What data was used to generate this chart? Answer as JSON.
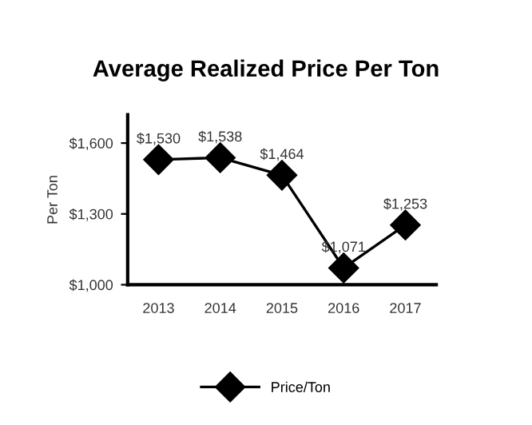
{
  "chart_data": {
    "type": "line",
    "title": "Average Realized Price Per Ton",
    "ylabel": "Per Ton",
    "categories": [
      "2013",
      "2014",
      "2015",
      "2016",
      "2017"
    ],
    "series": [
      {
        "name": "Price/Ton",
        "color": "#000000",
        "values": [
          1530,
          1538,
          1464,
          1071,
          1253
        ],
        "value_labels": [
          "$1,530",
          "$1,538",
          "$1,464",
          "$1,071",
          "$1,253"
        ]
      }
    ],
    "ylim": [
      1000,
      1720
    ],
    "yticks": [
      {
        "value": 1000,
        "label": "$1,000"
      },
      {
        "value": 1300,
        "label": "$1,300"
      },
      {
        "value": 1600,
        "label": "$1,600"
      }
    ],
    "marker": "diamond",
    "line_style": "solid",
    "grid": false,
    "legend": "bottom"
  }
}
